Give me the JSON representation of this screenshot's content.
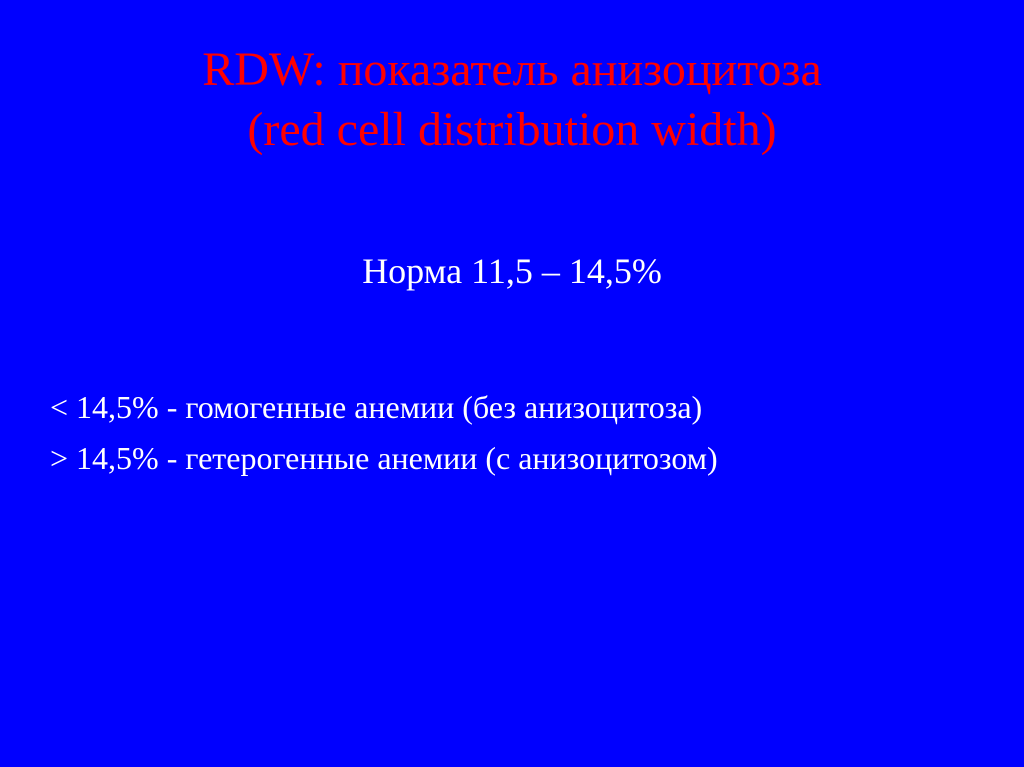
{
  "slide": {
    "background_color": "#0000ff",
    "title": {
      "line1": "RDW: показатель анизоцитоза",
      "line2": "(red cell distribution width)",
      "color": "#ff0000",
      "fontsize": 48
    },
    "norm": {
      "text": "Норма 11,5 – 14,5%",
      "color": "#ffffff",
      "fontsize": 36
    },
    "bullets": [
      {
        "symbol": "<",
        "text": " 14,5% - гомогенные анемии (без анизоцитоза)"
      },
      {
        "symbol": ">",
        "text": " 14,5% - гетерогенные анемии (с анизоцитозом)"
      }
    ],
    "bullet_color": "#ffffff",
    "bullet_fontsize": 32
  }
}
